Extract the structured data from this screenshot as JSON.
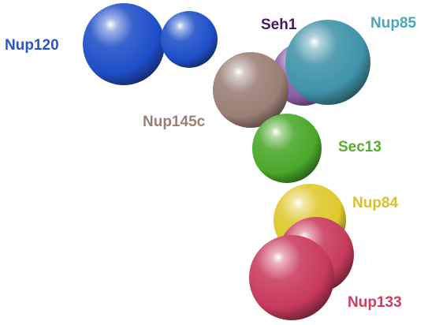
{
  "diagram": {
    "nodes": [
      {
        "id": "seh1",
        "label": "Seh1",
        "color": "#8a5fa8",
        "label_color": "#4a1660"
      },
      {
        "id": "nup85",
        "label": "Nup85",
        "color": "#3f93a9",
        "label_color": "#4ba6b8"
      },
      {
        "id": "nup120",
        "label": "Nup120",
        "color": "#1e4fc9",
        "label_color": "#2855cc"
      },
      {
        "id": "nup145c",
        "label": "Nup145c",
        "color": "#9a7f74",
        "label_color": "#9a7f74"
      },
      {
        "id": "sec13",
        "label": "Sec13",
        "color": "#4aa82a",
        "label_color": "#57ad2d"
      },
      {
        "id": "nup84",
        "label": "Nup84",
        "color": "#dec92e",
        "label_color": "#d9c032"
      },
      {
        "id": "nup133",
        "label": "Nup133",
        "color": "#c83a5b",
        "label_color": "#cc3d5f"
      }
    ]
  }
}
